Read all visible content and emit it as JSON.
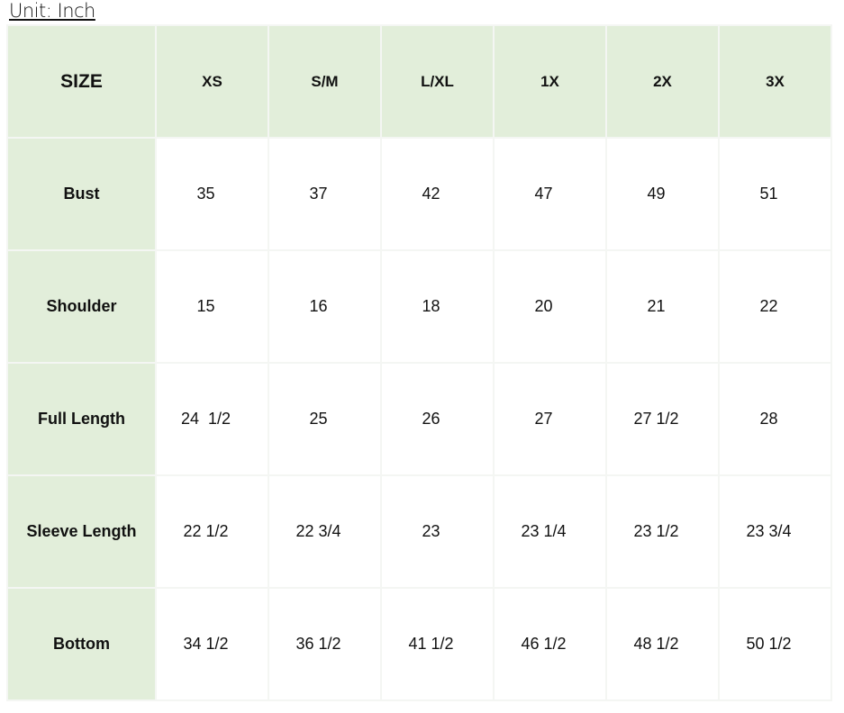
{
  "unit_label": "Unit: Inch",
  "header": {
    "label": "SIZE",
    "sizes": [
      "XS",
      "S/M",
      "L/XL",
      "1X",
      "2X",
      "3X"
    ]
  },
  "rows": [
    {
      "label": "Bust",
      "values": [
        "35",
        "37",
        "42",
        "47",
        "49",
        "51"
      ]
    },
    {
      "label": "Shoulder",
      "values": [
        "15",
        "16",
        "18",
        "20",
        "21",
        "22"
      ]
    },
    {
      "label": "Full Length",
      "values": [
        "24  1/2",
        "25",
        "26",
        "27",
        "27 1/2",
        "28"
      ]
    },
    {
      "label": "Sleeve Length",
      "values": [
        "22 1/2",
        "22 3/4",
        "23",
        "23 1/4",
        "23 1/2",
        "23 3/4"
      ]
    },
    {
      "label": "Bottom",
      "values": [
        "34 1/2",
        "36 1/2",
        "41 1/2",
        "46 1/2",
        "48 1/2",
        "50 1/2"
      ]
    }
  ],
  "colors": {
    "header_bg": "#e2eeda",
    "cell_bg": "#ffffff"
  }
}
